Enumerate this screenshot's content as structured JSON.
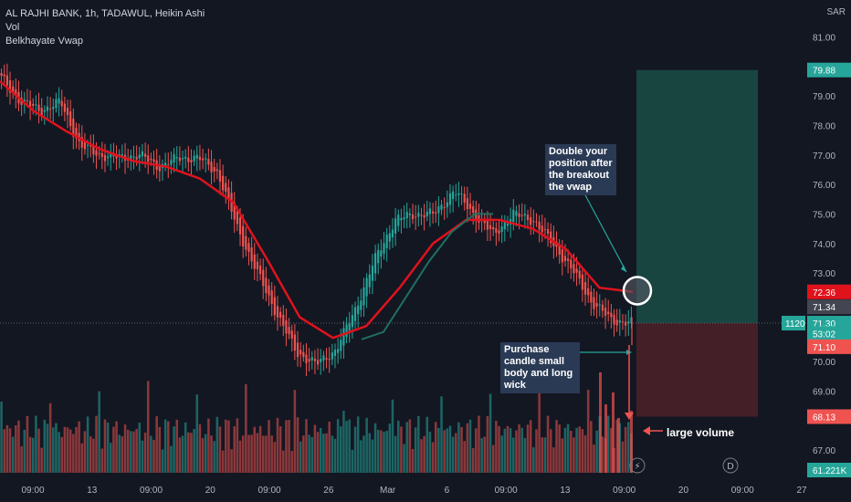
{
  "legend": {
    "symbol_line": "AL RAJHI BANK, 1h, TADAWUL, Heikin Ashi",
    "indicator_1": "Vol",
    "indicator_2": "Belkhayate Vwap"
  },
  "currency": "SAR",
  "annotations": {
    "double_position": "Double your position after the breakout the vwap",
    "purchase_candle": "Purchase candle small body and long wick",
    "large_volume": "large volume"
  },
  "colors": {
    "background": "#131722",
    "up_candle": "#26a69a",
    "down_candle": "#ef5350",
    "vwap_down": "#e0121c",
    "vwap_up": "#1f6f62",
    "target_zone": "#1b4a45",
    "stop_zone": "#4a2028",
    "note_bg": "#2a3a55"
  },
  "price_axis": {
    "ticks": [
      "81.00",
      "80.00",
      "79.00",
      "78.00",
      "77.00",
      "76.00",
      "75.00",
      "74.00",
      "73.00",
      "72.00",
      "71.00",
      "70.00",
      "69.00",
      "68.00",
      "67.00"
    ],
    "badges": [
      {
        "value": "79.88",
        "color": "#26a69a"
      },
      {
        "value": "72.36",
        "color": "#e0121c"
      },
      {
        "value": "71.34",
        "color": "#434651"
      },
      {
        "value": "71.30",
        "color": "#26a69a"
      },
      {
        "value": "53:02",
        "color": "#26a69a"
      },
      {
        "value": "71.10",
        "color": "#ef5350"
      },
      {
        "value": "68.13",
        "color": "#ef5350"
      },
      {
        "value": "61.221K",
        "color": "#26a69a"
      }
    ],
    "qty_badge": "1120"
  },
  "time_axis": {
    "labels": [
      "09:00",
      "13",
      "09:00",
      "20",
      "09:00",
      "26",
      "Mar",
      "6",
      "09:00",
      "13",
      "09:00",
      "20",
      "09:00",
      "27"
    ],
    "event_icons": [
      "⚡",
      "D"
    ]
  },
  "chart_data": {
    "type": "candlestick",
    "title": "AL RAJHI BANK, 1h, TADAWUL, Heikin Ashi",
    "ylim": [
      66.3,
      81.3
    ],
    "series": [
      {
        "name": "Heikin Ashi",
        "note": "approximate close path across the visible period",
        "close_path": [
          79.6,
          78.8,
          78.5,
          78.8,
          77.3,
          77.0,
          76.9,
          77.0,
          76.6,
          76.9,
          76.9,
          76.4,
          74.5,
          73.0,
          71.6,
          70.3,
          69.9,
          70.4,
          71.8,
          73.5,
          74.8,
          75.0,
          75.0,
          75.8,
          75.0,
          74.3,
          75.0,
          74.8,
          74.0,
          73.1,
          72.0,
          71.4,
          71.3
        ]
      },
      {
        "name": "Belkhayate Vwap",
        "color": "#e0121c",
        "values": [
          79.5,
          78.5,
          77.8,
          77.2,
          76.8,
          76.6,
          76.2,
          75.4,
          73.5,
          71.5,
          70.8,
          71.2,
          72.5,
          74.0,
          74.8,
          74.8,
          74.5,
          73.8,
          72.5,
          72.36
        ]
      },
      {
        "name": "Vol"
      }
    ],
    "trade_zones": {
      "entry": 71.3,
      "target": 79.88,
      "stop": 68.13
    },
    "markers": {
      "current_price": 71.3,
      "last_low": 71.1,
      "vwap_last": 72.36,
      "last_volume": "61.221K"
    }
  }
}
